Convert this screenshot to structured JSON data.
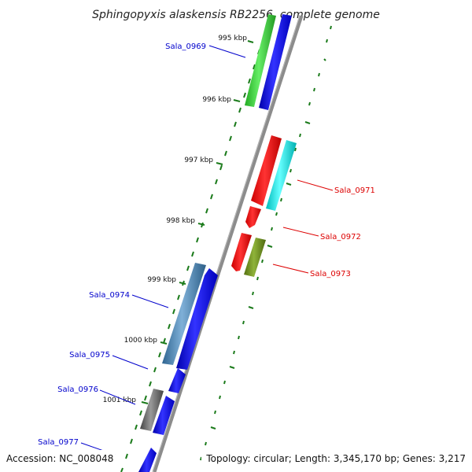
{
  "title": "Sphingopyxis alaskensis RB2256, complete genome",
  "accession": "Accession: NC_008048",
  "topology": "Topology: circular; Length: 3,345,170 bp; Genes: 3,217",
  "ticks": [
    "995 kbp",
    "996 kbp",
    "997 kbp",
    "998 kbp",
    "999 kbp",
    "1000 kbp",
    "1001 kbp"
  ],
  "gene_labels": [
    "Sala_0969",
    "Sala_0971",
    "Sala_0972",
    "Sala_0973",
    "Sala_0974",
    "Sala_0975",
    "Sala_0976",
    "Sala_0977"
  ],
  "colors": {
    "forward_label": "#0000cc",
    "reverse_label": "#dd0000",
    "backbone": "#8c8c8c",
    "tick": "#1a7a1a",
    "blue": "#0000ee",
    "green": "#33cc33",
    "red": "#ee0000",
    "cyan": "#00e5e5",
    "olive": "#6b8e23",
    "steelblue": "#4682b4",
    "gray": "#666666"
  }
}
